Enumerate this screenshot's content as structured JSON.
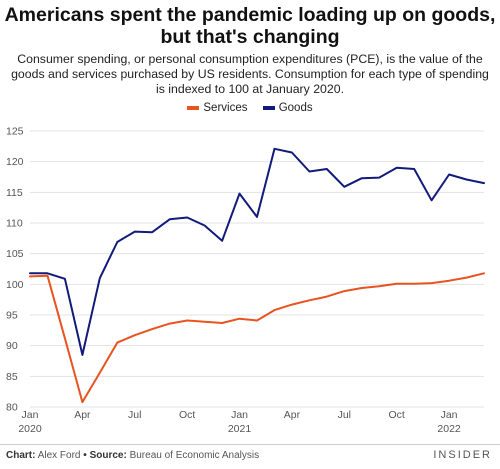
{
  "header": {
    "title": "Americans spent the pandemic loading up on goods, but that's changing",
    "subtitle": "Consumer spending, or personal consumption expenditures (PCE), is the value of the goods and services purchased by US residents. Consumption for each type of spending is indexed to 100 at January 2020."
  },
  "footer": {
    "chart_label": "Chart:",
    "chart_author": "Alex Ford",
    "bullet": "•",
    "source_label": "Source:",
    "source": "Bureau of Economic Analysis",
    "brand": "INSIDER"
  },
  "colors": {
    "services": "#e8531f",
    "goods": "#121a7a",
    "grid": "#e3e3e3"
  },
  "chart_data": {
    "type": "line",
    "x": [
      "2020-01",
      "2020-02",
      "2020-03",
      "2020-04",
      "2020-05",
      "2020-06",
      "2020-07",
      "2020-08",
      "2020-09",
      "2020-10",
      "2020-11",
      "2020-12",
      "2021-01",
      "2021-02",
      "2021-03",
      "2021-04",
      "2021-05",
      "2021-06",
      "2021-07",
      "2021-08",
      "2021-09",
      "2021-10",
      "2021-11",
      "2021-12",
      "2022-01",
      "2022-02",
      "2022-03"
    ],
    "series": [
      {
        "name": "Services",
        "values": [
          101.3,
          101.4,
          91.2,
          80.8,
          85.6,
          90.5,
          91.7,
          92.7,
          93.6,
          94.1,
          93.9,
          93.7,
          94.4,
          94.1,
          95.8,
          96.7,
          97.4,
          98.0,
          98.9,
          99.4,
          99.7,
          100.1,
          100.1,
          100.2,
          100.6,
          101.1,
          101.8
        ]
      },
      {
        "name": "Goods",
        "values": [
          101.8,
          101.8,
          100.9,
          88.5,
          101.0,
          106.9,
          108.6,
          108.5,
          110.6,
          110.9,
          109.6,
          107.1,
          114.8,
          111.0,
          122.1,
          121.5,
          118.4,
          118.8,
          115.9,
          117.3,
          117.4,
          119.0,
          118.8,
          113.7,
          117.9,
          117.1,
          116.5
        ]
      }
    ],
    "x_ticks": [
      {
        "month": "Jan",
        "year": "2020",
        "index": 0
      },
      {
        "month": "Apr",
        "year": "",
        "index": 3
      },
      {
        "month": "Jul",
        "year": "",
        "index": 6
      },
      {
        "month": "Oct",
        "year": "",
        "index": 9
      },
      {
        "month": "Jan",
        "year": "2021",
        "index": 12
      },
      {
        "month": "Apr",
        "year": "",
        "index": 15
      },
      {
        "month": "Jul",
        "year": "",
        "index": 18
      },
      {
        "month": "Oct",
        "year": "",
        "index": 21
      },
      {
        "month": "Jan",
        "year": "2022",
        "index": 24
      }
    ],
    "y_ticks": [
      80,
      85,
      90,
      95,
      100,
      105,
      110,
      115,
      120,
      125
    ],
    "ylim": [
      80,
      125
    ],
    "grid": true,
    "legend": "top-center"
  }
}
